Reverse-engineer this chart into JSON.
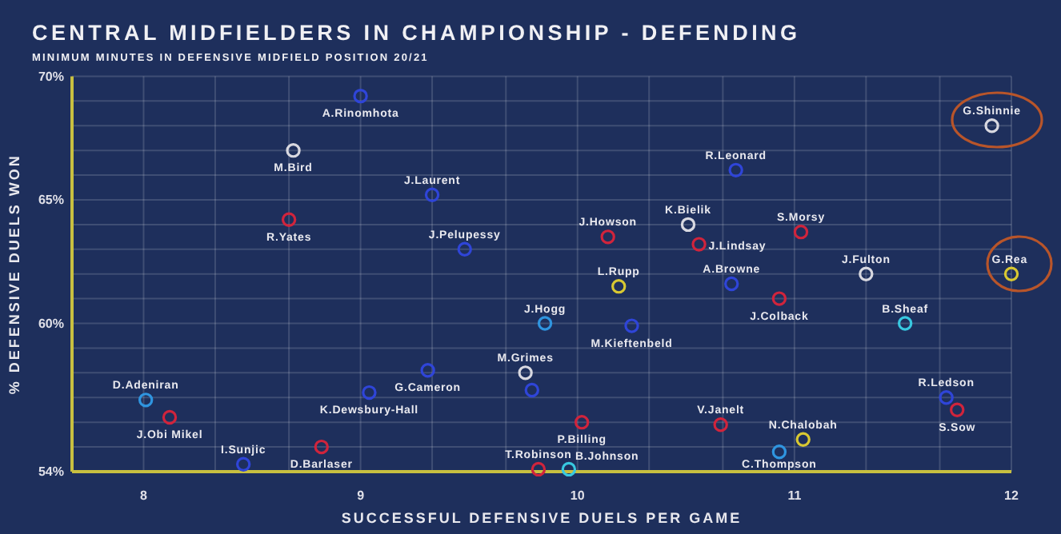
{
  "chart_data": {
    "type": "scatter",
    "title": "CENTRAL MIDFIELDERS IN CHAMPIONSHIP - DEFENDING",
    "subtitle": "MINIMUM MINUTES IN DEFENSIVE MIDFIELD POSITION 20/21",
    "xlabel": "SUCCESSFUL DEFENSIVE DUELS PER GAME",
    "ylabel": "% DEFENSIVE DUELS WON",
    "xlim": [
      7.67,
      12
    ],
    "ylim": [
      54,
      70
    ],
    "xticks": [
      8,
      {
        "value": 8.33,
        "label": null
      },
      {
        "value": 8.67,
        "label": null
      },
      9,
      {
        "value": 9.33,
        "label": null
      },
      {
        "value": 9.67,
        "label": null
      },
      10,
      {
        "value": 10.33,
        "label": null
      },
      {
        "value": 10.67,
        "label": null
      },
      11,
      {
        "value": 11.33,
        "label": null
      },
      {
        "value": 11.67,
        "label": null
      },
      12
    ],
    "yticks": [
      {
        "value": 54,
        "label": "54%"
      },
      {
        "value": 55,
        "label": null
      },
      {
        "value": 56,
        "label": null
      },
      {
        "value": 57,
        "label": null
      },
      {
        "value": 58,
        "label": null
      },
      {
        "value": 59,
        "label": null
      },
      {
        "value": 60,
        "label": "60%"
      },
      {
        "value": 61,
        "label": null
      },
      {
        "value": 62,
        "label": null
      },
      {
        "value": 63,
        "label": null
      },
      {
        "value": 64,
        "label": null
      },
      {
        "value": 65,
        "label": "65%"
      },
      {
        "value": 66,
        "label": null
      },
      {
        "value": 67,
        "label": null
      },
      {
        "value": 68,
        "label": null
      },
      {
        "value": 69,
        "label": null
      },
      {
        "value": 70,
        "label": "70%"
      }
    ],
    "grid": true,
    "marker": "circle",
    "series": [
      {
        "x": [
          9.0,
          8.69,
          9.33,
          8.67,
          9.48,
          11.91,
          10.73,
          10.51,
          10.14,
          10.56,
          11.03,
          11.33,
          12.0,
          10.19,
          10.71,
          10.93,
          9.85,
          10.25,
          11.51,
          9.76,
          9.79,
          11.7,
          11.75,
          10.02,
          10.66,
          11.04,
          10.93,
          9.82,
          9.96,
          8.01,
          8.12,
          8.46,
          8.82,
          9.04,
          9.31
        ],
        "values": [
          69.2,
          67.0,
          65.2,
          64.2,
          63.0,
          68.0,
          66.2,
          64.0,
          63.5,
          63.2,
          63.7,
          62.0,
          62.0,
          61.5,
          61.6,
          61.0,
          60.0,
          59.9,
          60.0,
          58.0,
          57.3,
          57.0,
          56.5,
          56.0,
          55.9,
          55.3,
          54.8,
          54.1,
          54.1,
          56.9,
          56.2,
          54.3,
          55.0,
          57.2,
          58.1
        ],
        "colors": [
          "#2f45d8",
          "#d8d8e0",
          "#2f45d8",
          "#d0243c",
          "#2f45d8",
          "#d8d8e0",
          "#2f45d8",
          "#d8d8e0",
          "#d0243c",
          "#d0243c",
          "#d0243c",
          "#d8d8e0",
          "#d8c832",
          "#d8c832",
          "#2f45d8",
          "#d0243c",
          "#2f95e0",
          "#2f45d8",
          "#38c8e0",
          "#d8d8e0",
          "#2f45d8",
          "#2f45d8",
          "#d0243c",
          "#d0243c",
          "#d0243c",
          "#d8c832",
          "#2f95e0",
          "#d0243c",
          "#38c8e0",
          "#2f95e0",
          "#d0243c",
          "#2f45d8",
          "#d0243c",
          "#2f45d8",
          "#2f45d8"
        ]
      }
    ],
    "annotations": [
      {
        "text": "A.Rinomhota",
        "x": 9.0,
        "y": 69.2
      },
      {
        "text": "M.Bird",
        "x": 8.69,
        "y": 67.0
      },
      {
        "text": "J.Laurent",
        "x": 9.33,
        "y": 65.2
      },
      {
        "text": "R.Yates",
        "x": 8.67,
        "y": 64.2
      },
      {
        "text": "J.Pelupessy",
        "x": 9.48,
        "y": 63.0
      },
      {
        "text": "G.Shinnie",
        "x": 11.91,
        "y": 68.0
      },
      {
        "text": "R.Leonard",
        "x": 10.73,
        "y": 66.2
      },
      {
        "text": "K.Bielik",
        "x": 10.51,
        "y": 64.0
      },
      {
        "text": "J.Howson",
        "x": 10.14,
        "y": 63.5
      },
      {
        "text": "J.Lindsay",
        "x": 10.56,
        "y": 63.2
      },
      {
        "text": "S.Morsy",
        "x": 11.03,
        "y": 63.7
      },
      {
        "text": "J.Fulton",
        "x": 11.33,
        "y": 62.0
      },
      {
        "text": "G.Rea",
        "x": 12.0,
        "y": 62.0
      },
      {
        "text": "L.Rupp",
        "x": 10.19,
        "y": 61.5
      },
      {
        "text": "A.Browne",
        "x": 10.71,
        "y": 61.6
      },
      {
        "text": "J.Colback",
        "x": 10.93,
        "y": 61.0
      },
      {
        "text": "J.Hogg",
        "x": 9.85,
        "y": 60.0
      },
      {
        "text": "M.Kieftenbeld",
        "x": 10.25,
        "y": 59.9
      },
      {
        "text": "B.Sheaf",
        "x": 11.51,
        "y": 60.0
      },
      {
        "text": "M.Grimes",
        "x": 9.76,
        "y": 58.0
      },
      {
        "text": "R.Ledson",
        "x": 11.7,
        "y": 57.0
      },
      {
        "text": "S.Sow",
        "x": 11.75,
        "y": 56.5
      },
      {
        "text": "P.Billing",
        "x": 10.02,
        "y": 56.0
      },
      {
        "text": "V.Janelt",
        "x": 10.66,
        "y": 55.9
      },
      {
        "text": "N.Chalobah",
        "x": 11.04,
        "y": 55.3
      },
      {
        "text": "C.Thompson",
        "x": 10.93,
        "y": 54.8
      },
      {
        "text": "T.Robinson",
        "x": 9.82,
        "y": 54.1
      },
      {
        "text": "B.Johnson",
        "x": 9.96,
        "y": 54.1
      },
      {
        "text": "D.Adeniran",
        "x": 8.01,
        "y": 56.9
      },
      {
        "text": "J.Obi Mikel",
        "x": 8.12,
        "y": 56.2
      },
      {
        "text": "I.Sunjic",
        "x": 8.46,
        "y": 54.3
      },
      {
        "text": "D.Barlaser",
        "x": 8.82,
        "y": 55.0
      },
      {
        "text": "K.Dewsbury-Hall",
        "x": 9.04,
        "y": 57.2
      },
      {
        "text": "G.Cameron",
        "x": 9.31,
        "y": 58.1
      }
    ]
  }
}
